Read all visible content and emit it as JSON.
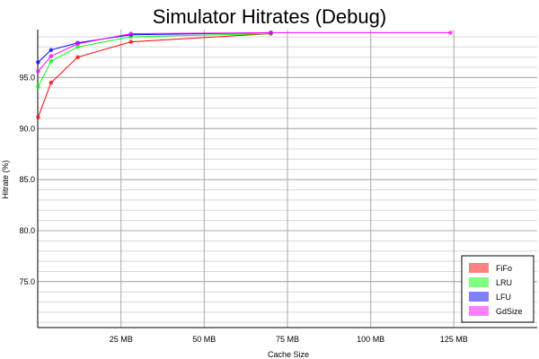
{
  "chart_data": {
    "type": "line",
    "title": "Simulator Hitrates (Debug)",
    "xlabel": "Cache Size",
    "ylabel": "Hitrate (%)",
    "xlim": [
      0,
      150
    ],
    "ylim": [
      70.5,
      99.7
    ],
    "x_ticks": [
      25,
      50,
      75,
      100,
      125
    ],
    "x_tick_labels": [
      "25 MB",
      "50 MB",
      "75 MB",
      "100 MB",
      "125 MB"
    ],
    "y_ticks": [
      75,
      80,
      85,
      90,
      95
    ],
    "y_tick_labels": [
      "75.0",
      "80.0",
      "85.0",
      "90.0",
      "95.0"
    ],
    "grid": true,
    "legend_position": "bottom-right",
    "x": [
      2,
      4,
      8,
      16,
      32,
      64,
      128
    ],
    "series": [
      {
        "name": "FiFo",
        "color": "#ff0000",
        "legend_color": "#ff8080",
        "points": [
          [
            0.1,
            91.1
          ],
          [
            4,
            94.5
          ],
          [
            12,
            97.0
          ],
          [
            28,
            98.5
          ],
          [
            70,
            99.3
          ]
        ]
      },
      {
        "name": "LRU",
        "color": "#00ff00",
        "legend_color": "#80ff80",
        "points": [
          [
            0.1,
            94.1
          ],
          [
            4,
            96.6
          ],
          [
            12,
            98.0
          ],
          [
            28,
            99.0
          ],
          [
            70,
            99.3
          ]
        ]
      },
      {
        "name": "LFU",
        "color": "#0000ff",
        "legend_color": "#8080ff",
        "points": [
          [
            0.1,
            96.5
          ],
          [
            4,
            97.7
          ],
          [
            12,
            98.4
          ],
          [
            28,
            99.2
          ],
          [
            70,
            99.4
          ]
        ]
      },
      {
        "name": "GdSize",
        "color": "#ff00ff",
        "legend_color": "#ff80ff",
        "points": [
          [
            0.1,
            95.6
          ],
          [
            4,
            97.1
          ],
          [
            12,
            98.3
          ],
          [
            28,
            99.3
          ],
          [
            70,
            99.4
          ],
          [
            124,
            99.4
          ]
        ]
      }
    ]
  }
}
